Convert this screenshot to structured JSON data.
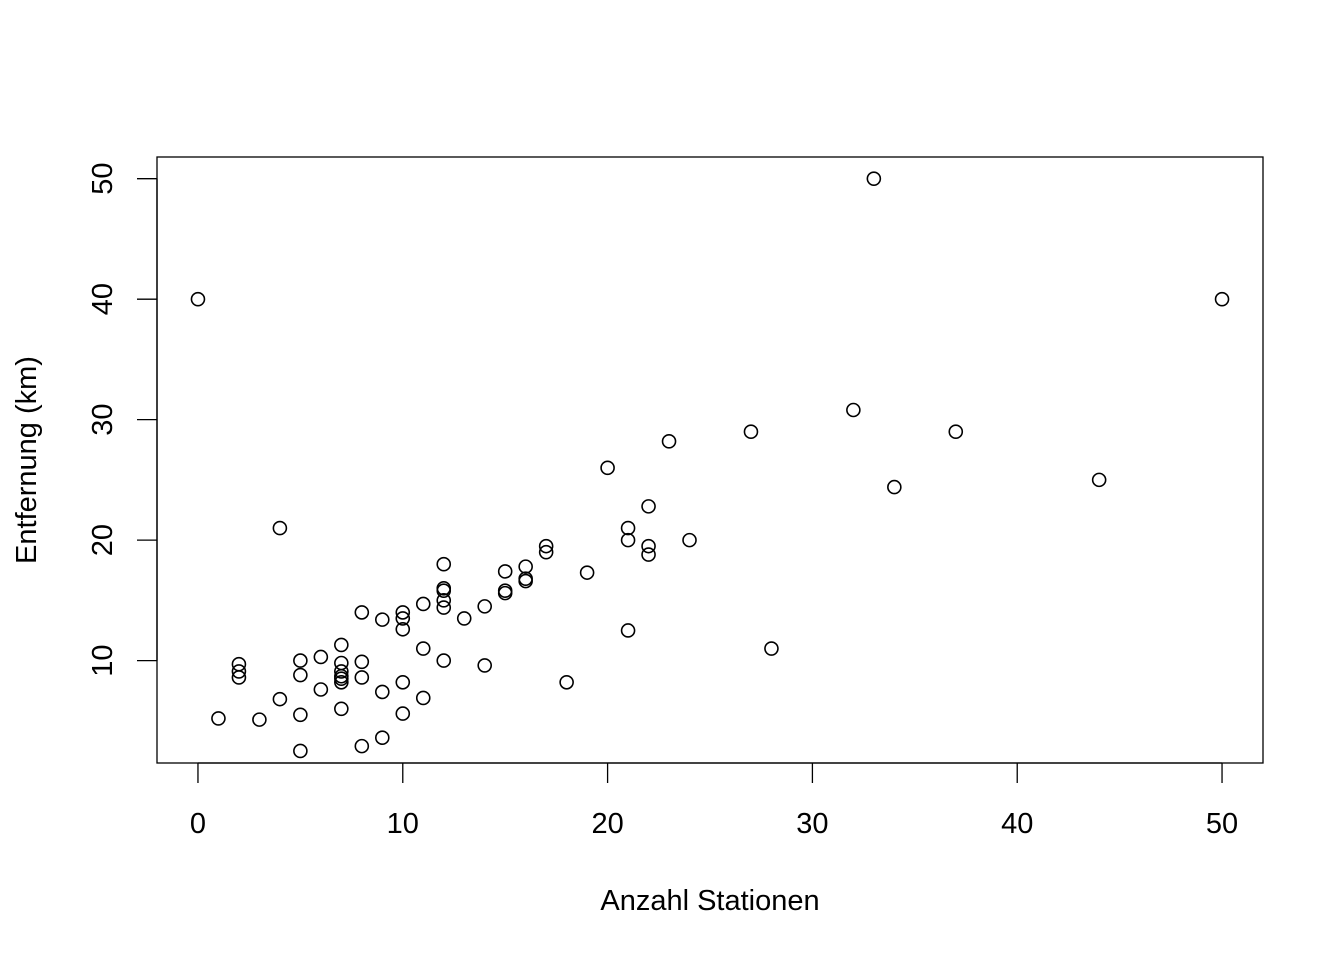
{
  "chart_data": {
    "type": "scatter",
    "title": "",
    "xlabel": "Anzahl Stationen",
    "ylabel": "Entfernung (km)",
    "xlim": [
      -2,
      52
    ],
    "ylim": [
      1.5,
      51.8
    ],
    "xticks": [
      0,
      10,
      20,
      30,
      40,
      50
    ],
    "yticks": [
      10,
      20,
      30,
      40,
      50
    ],
    "grid": false,
    "marker": "open-circle",
    "series": [
      {
        "x": [
          0,
          1,
          2,
          2,
          2,
          3,
          4,
          4,
          5,
          5,
          5,
          5,
          6,
          6,
          7,
          7,
          7,
          7,
          7,
          7,
          7,
          8,
          8,
          8,
          8,
          9,
          9,
          9,
          10,
          10,
          10,
          10,
          10,
          11,
          11,
          11,
          12,
          12,
          12,
          12,
          12,
          12,
          13,
          14,
          14,
          15,
          15,
          15,
          16,
          16,
          16,
          17,
          17,
          18,
          19,
          20,
          21,
          21,
          21,
          22,
          22,
          22,
          23,
          24,
          27,
          28,
          32,
          33,
          34,
          37,
          44,
          50
        ],
        "y": [
          40,
          5.2,
          9.7,
          9.1,
          8.6,
          5.1,
          21,
          6.8,
          10,
          8.8,
          5.5,
          2.5,
          10.3,
          7.6,
          11.3,
          9.8,
          9.1,
          8.7,
          8.2,
          6.0,
          8.5,
          14,
          9.9,
          8.6,
          2.9,
          13.4,
          7.4,
          3.6,
          14,
          13.5,
          12.6,
          8.2,
          5.6,
          14.7,
          11.0,
          6.9,
          18,
          16,
          15.8,
          15,
          14.4,
          10.0,
          13.5,
          14.5,
          9.6,
          17.4,
          15.8,
          15.6,
          17.8,
          16.8,
          16.6,
          19.5,
          19.0,
          8.2,
          17.3,
          26,
          21,
          20,
          12.5,
          22.8,
          19.5,
          18.8,
          28.2,
          20,
          29,
          11,
          30.8,
          50,
          24.4,
          29,
          25,
          40
        ]
      }
    ]
  }
}
